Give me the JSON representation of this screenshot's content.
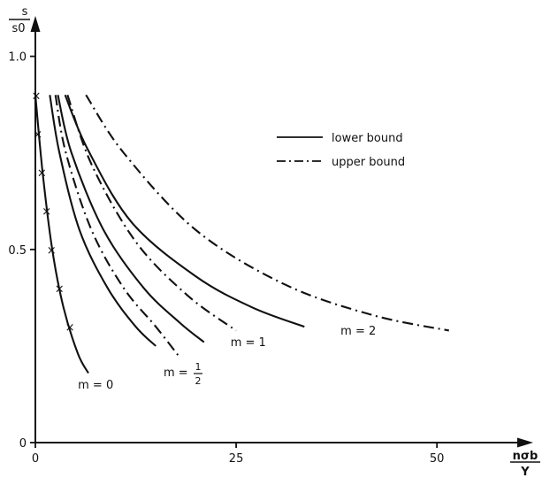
{
  "chart_data": {
    "type": "line",
    "xlabel_num": "nσb",
    "xlabel_den": "Y",
    "ylabel_num": "s",
    "ylabel_den": "s0",
    "xlim": [
      0,
      60
    ],
    "ylim": [
      0,
      1.1
    ],
    "x_ticks": [
      {
        "value": 0,
        "label": "0"
      },
      {
        "value": 25,
        "label": "25"
      },
      {
        "value": 50,
        "label": "50"
      }
    ],
    "y_ticks": [
      {
        "value": 0,
        "label": "0"
      },
      {
        "value": 0.5,
        "label": "0.5"
      },
      {
        "value": 1.0,
        "label": "1.0"
      }
    ],
    "legend": {
      "placement": "top-right",
      "entries": [
        {
          "style": "solid",
          "label": "lower bound"
        },
        {
          "style": "dashdot",
          "label": "upper bound"
        }
      ]
    },
    "series": [
      {
        "bound": "lower",
        "m": "0",
        "style": "solid",
        "x": [
          0,
          0.9,
          2.1,
          3.5,
          5.3,
          6.6
        ],
        "y": [
          0.9,
          0.7,
          0.5,
          0.35,
          0.23,
          0.18
        ]
      },
      {
        "bound": "lower",
        "m": "1/2",
        "style": "solid",
        "x": [
          1.8,
          3.0,
          5.5,
          9.0,
          12.5,
          15.0
        ],
        "y": [
          0.9,
          0.75,
          0.55,
          0.4,
          0.3,
          0.25
        ]
      },
      {
        "bound": "upper",
        "m": "1/2",
        "style": "dashdot",
        "x": [
          2.5,
          3.8,
          7.0,
          11.0,
          15.0,
          18.0
        ],
        "y": [
          0.9,
          0.75,
          0.55,
          0.4,
          0.3,
          0.22
        ]
      },
      {
        "bound": "lower",
        "m": "1",
        "style": "solid",
        "x": [
          2.8,
          4.5,
          8.5,
          13.5,
          18.0,
          21.0
        ],
        "y": [
          0.9,
          0.75,
          0.55,
          0.4,
          0.31,
          0.26
        ]
      },
      {
        "bound": "upper",
        "m": "1",
        "style": "dashdot",
        "x": [
          4.0,
          7.0,
          12.5,
          19.0,
          25.0
        ],
        "y": [
          0.9,
          0.72,
          0.52,
          0.38,
          0.29
        ]
      },
      {
        "bound": "lower",
        "m": "2",
        "style": "solid",
        "x": [
          3.7,
          6.5,
          12.0,
          20.0,
          27.0,
          33.5
        ],
        "y": [
          0.9,
          0.76,
          0.57,
          0.43,
          0.35,
          0.3
        ]
      },
      {
        "bound": "upper",
        "m": "2",
        "style": "dashdot",
        "x": [
          6.3,
          11.0,
          20.0,
          31.0,
          42.0,
          51.5
        ],
        "y": [
          0.9,
          0.75,
          0.55,
          0.41,
          0.33,
          0.29
        ]
      }
    ],
    "markers": {
      "symbol": "×",
      "points": [
        {
          "x": 0.1,
          "y": 0.9
        },
        {
          "x": 0.3,
          "y": 0.8
        },
        {
          "x": 0.8,
          "y": 0.7
        },
        {
          "x": 1.4,
          "y": 0.6
        },
        {
          "x": 2.0,
          "y": 0.5
        },
        {
          "x": 3.0,
          "y": 0.4
        },
        {
          "x": 4.3,
          "y": 0.3
        }
      ]
    },
    "annotations": [
      {
        "text": "m = 0",
        "x": 5.3,
        "y": 0.14
      },
      {
        "text": "m = 1",
        "x": 24.3,
        "y": 0.25
      },
      {
        "text": "m = 2",
        "x": 38.0,
        "y": 0.28
      }
    ],
    "annotation_half": {
      "prefix": "m =",
      "num": "1",
      "den": "2",
      "x": 17.0,
      "y": 0.18
    }
  }
}
